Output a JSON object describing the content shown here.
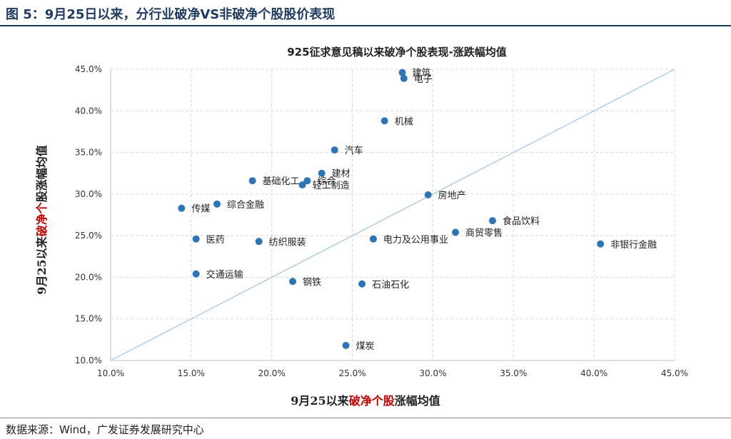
{
  "figure": {
    "title": "图 5：9月25日以来，分行业破净VS非破净个股股价表现",
    "source": "数据来源：Wind，广发证券发展研究中心"
  },
  "chart_data": {
    "type": "scatter",
    "title": "925征求意见稿以来破净个股表现-涨跌幅均值",
    "xlabel": {
      "pre": "9月25以来",
      "accent": "破净个股",
      "post": "涨幅均值"
    },
    "ylabel": {
      "pre": "9月25以来",
      "accent": "破净个",
      "post": "股涨幅均值"
    },
    "xlim": [
      0.1,
      0.45
    ],
    "ylim": [
      0.1,
      0.45
    ],
    "xticks": [
      "10.0%",
      "15.0%",
      "20.0%",
      "25.0%",
      "30.0%",
      "35.0%",
      "40.0%",
      "45.0%"
    ],
    "yticks": [
      "10.0%",
      "15.0%",
      "20.0%",
      "25.0%",
      "30.0%",
      "35.0%",
      "40.0%",
      "45.0%"
    ],
    "grid": true,
    "reference_line": "y = x",
    "colors": {
      "point": "#2e75b6",
      "line": "#9dc3e6",
      "grid": "#d9d9d9",
      "accent": "#c00000"
    },
    "points": [
      {
        "label": "建筑",
        "x": 0.281,
        "y": 0.446
      },
      {
        "label": "电子",
        "x": 0.282,
        "y": 0.439
      },
      {
        "label": "机械",
        "x": 0.27,
        "y": 0.388
      },
      {
        "label": "汽车",
        "x": 0.239,
        "y": 0.353
      },
      {
        "label": "建材",
        "x": 0.231,
        "y": 0.325
      },
      {
        "label": "基础化工",
        "x": 0.188,
        "y": 0.316
      },
      {
        "label": "综合",
        "x": 0.222,
        "y": 0.316
      },
      {
        "label": "轻工制造",
        "x": 0.219,
        "y": 0.311
      },
      {
        "label": "传媒",
        "x": 0.144,
        "y": 0.283
      },
      {
        "label": "综合金融",
        "x": 0.166,
        "y": 0.288
      },
      {
        "label": "房地产",
        "x": 0.297,
        "y": 0.299
      },
      {
        "label": "医药",
        "x": 0.153,
        "y": 0.246
      },
      {
        "label": "纺织服装",
        "x": 0.192,
        "y": 0.243
      },
      {
        "label": "电力及公用事业",
        "x": 0.263,
        "y": 0.246
      },
      {
        "label": "商贸零售",
        "x": 0.314,
        "y": 0.254
      },
      {
        "label": "食品饮料",
        "x": 0.337,
        "y": 0.268
      },
      {
        "label": "非银行金融",
        "x": 0.404,
        "y": 0.24
      },
      {
        "label": "交通运输",
        "x": 0.153,
        "y": 0.204
      },
      {
        "label": "钢铁",
        "x": 0.213,
        "y": 0.195
      },
      {
        "label": "石油石化",
        "x": 0.256,
        "y": 0.192
      },
      {
        "label": "煤炭",
        "x": 0.246,
        "y": 0.118
      }
    ]
  }
}
